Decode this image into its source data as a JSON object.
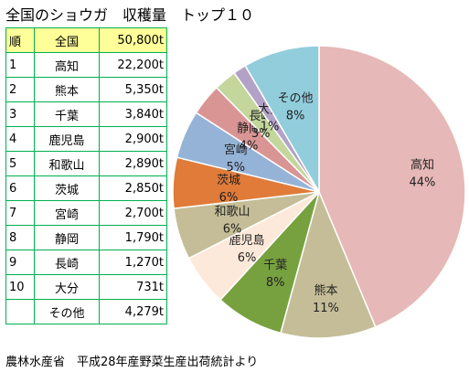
{
  "title": "全国のショウガ　収穫量　トップ１０",
  "table": {
    "header": {
      "rank": "順",
      "name": "全国",
      "value": "50,800t"
    },
    "rows": [
      {
        "rank": "1",
        "name": "高知",
        "value": "22,200t"
      },
      {
        "rank": "2",
        "name": "熊本",
        "value": "5,350t"
      },
      {
        "rank": "3",
        "name": "千葉",
        "value": "3,840t"
      },
      {
        "rank": "4",
        "name": "鹿児島",
        "value": "2,900t"
      },
      {
        "rank": "5",
        "name": "和歌山",
        "value": "2,890t"
      },
      {
        "rank": "6",
        "name": "茨城",
        "value": "2,850t"
      },
      {
        "rank": "7",
        "name": "宮崎",
        "value": "2,700t"
      },
      {
        "rank": "8",
        "name": "静岡",
        "value": "1,790t"
      },
      {
        "rank": "9",
        "name": "長崎",
        "value": "1,270t"
      },
      {
        "rank": "10",
        "name": "大分",
        "value": "731t"
      }
    ],
    "other": {
      "rank": "",
      "name": "その他",
      "value": "4,279t"
    }
  },
  "source": "農林水産省　平成28年産野菜生産出荷統計より",
  "chart_data": {
    "type": "pie",
    "start": "top",
    "direction": "clockwise",
    "slices": [
      {
        "name": "高知",
        "value": 22200,
        "label": "44%",
        "color": "#e6b8b7"
      },
      {
        "name": "熊本",
        "value": 5350,
        "label": "11%",
        "color": "#c4bd97"
      },
      {
        "name": "千葉",
        "value": 3840,
        "label": "8%",
        "color": "#77a13f"
      },
      {
        "name": "鹿児島",
        "value": 2900,
        "label": "6%",
        "color": "#fde9d9"
      },
      {
        "name": "和歌山",
        "value": 2890,
        "label": "6%",
        "color": "#c4bd97"
      },
      {
        "name": "茨城",
        "value": 2850,
        "label": "6%",
        "color": "#e07b39"
      },
      {
        "name": "宮崎",
        "value": 2700,
        "label": "5%",
        "color": "#95b3d7"
      },
      {
        "name": "静岡",
        "value": 1790,
        "label": "4%",
        "color": "#d99594"
      },
      {
        "name": "長崎",
        "value": 1270,
        "label": "3%",
        "color": "#c3d69b"
      },
      {
        "name": "大分",
        "value": 731,
        "label": "1%",
        "color": "#b3a2c7"
      },
      {
        "name": "その他",
        "value": 4279,
        "label": "8%",
        "color": "#92cddc"
      }
    ]
  }
}
